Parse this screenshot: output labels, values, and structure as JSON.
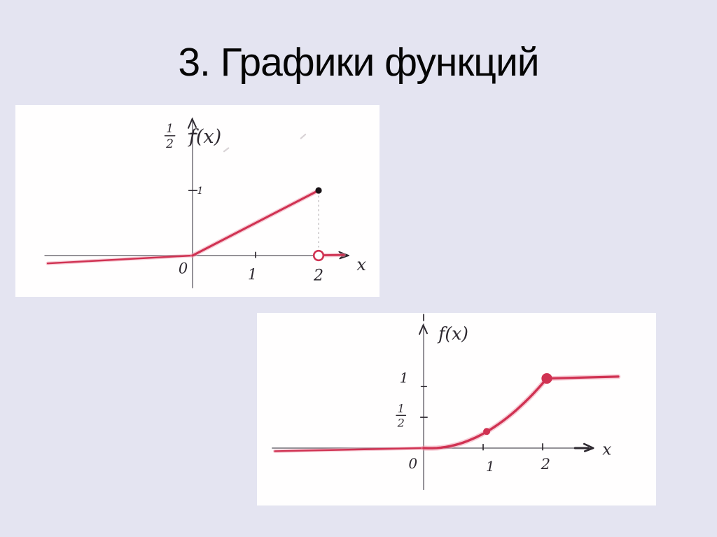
{
  "slide": {
    "title": "3. Графики функций"
  },
  "colors": {
    "background": "#e4e4f1",
    "panel": "#fffefe",
    "curve": "#d03252",
    "curve_halo": "#f09cb0",
    "axis": "#56515b",
    "ink": "#2e2930",
    "guide": "#b2acb0",
    "faint": "#d9d3d6",
    "dot_black": "#181115"
  },
  "chart_data": [
    {
      "type": "line",
      "name": "piecewise linear: f(x)=0 for x<0, f(x)=x/2 on (0,2), f(x)=0 for x>2",
      "xlabel": "x",
      "ylabel": "f(x)",
      "x_axis_range": [
        -2.35,
        2.48
      ],
      "y_axis_range": [
        -0.5,
        2.12
      ],
      "x_tick_labels": [
        "0",
        "1",
        "2"
      ],
      "y_tick_labels": [
        "1",
        "1/2"
      ],
      "segments": [
        {
          "points": [
            [
              -2.3,
              -0.12
            ],
            [
              0,
              0
            ]
          ]
        },
        {
          "points": [
            [
              0,
              0
            ],
            [
              2,
              1
            ]
          ]
        },
        {
          "points": [
            [
              2.08,
              0.005
            ],
            [
              2.4,
              0.01
            ]
          ]
        }
      ],
      "markers": [
        {
          "x": 2,
          "y": 1,
          "style": "black-dot"
        },
        {
          "x": 2,
          "y": 0,
          "style": "open-circle"
        }
      ],
      "guides": [
        {
          "from": [
            2,
            0.92
          ],
          "to": [
            2,
            0.09
          ]
        }
      ],
      "ticks": [
        {
          "from": [
            -0.06,
            1
          ],
          "to": [
            0.07,
            1
          ]
        },
        {
          "from": [
            -0.06,
            1.87
          ],
          "to": [
            0.07,
            1.87
          ]
        },
        {
          "from": [
            1,
            -0.03
          ],
          "to": [
            1,
            0.05
          ]
        }
      ],
      "faint_marks": [
        {
          "from": [
            0.5,
            1.6
          ],
          "to": [
            0.57,
            1.65
          ]
        },
        {
          "from": [
            1.72,
            1.8
          ],
          "to": [
            1.79,
            1.86
          ]
        }
      ],
      "labels": [
        {
          "text": "f(x)",
          "x": 0.2,
          "y": 1.83,
          "size": 27
        },
        {
          "frac": [
            "1",
            "2"
          ],
          "x": -0.36,
          "y": 1.84,
          "size": 17
        },
        {
          "text": "1",
          "x": 0.12,
          "y": 1.0,
          "size": 14
        },
        {
          "text": "0",
          "x": -0.15,
          "y": -0.2,
          "size": 21
        },
        {
          "text": "1",
          "x": 0.95,
          "y": -0.29,
          "size": 21
        },
        {
          "text": "2",
          "x": 2.0,
          "y": -0.3,
          "size": 22
        },
        {
          "text": "x",
          "x": 2.68,
          "y": -0.14,
          "size": 24
        }
      ]
    },
    {
      "type": "line",
      "name": "smooth curve: f(x)=0 for x<0, f(x)=x²/4 on [0,2], f(x)=1 for x>2",
      "xlabel": "x",
      "ylabel": "f(x)",
      "x_axis_range": [
        -2.55,
        2.85
      ],
      "y_axis_range": [
        -0.68,
        2.02
      ],
      "x_tick_labels": [
        "0",
        "1",
        "2"
      ],
      "y_tick_labels": [
        "1/2",
        "1"
      ],
      "segments": [
        {
          "points": [
            [
              -2.5,
              -0.05
            ],
            [
              0,
              0
            ]
          ]
        },
        {
          "points": [
            [
              0,
              0
            ],
            [
              1.05,
              0.26
            ],
            [
              2.07,
              1.13
            ]
          ],
          "curve": "smooth"
        },
        {
          "points": [
            [
              2.07,
              1.13
            ],
            [
              3.27,
              1.16
            ]
          ]
        }
      ],
      "markers": [
        {
          "x": 1.06,
          "y": 0.27,
          "style": "red-dot"
        },
        {
          "x": 2.07,
          "y": 1.13,
          "style": "red-dot-large"
        }
      ],
      "guides": [],
      "ticks": [
        {
          "from": [
            1,
            -0.03
          ],
          "to": [
            1,
            0.06
          ]
        },
        {
          "from": [
            2,
            -0.03
          ],
          "to": [
            2,
            0.07
          ]
        },
        {
          "from": [
            -0.04,
            1
          ],
          "to": [
            0.05,
            1
          ]
        },
        {
          "from": [
            -0.05,
            0.5
          ],
          "to": [
            0.06,
            0.5
          ]
        },
        {
          "from": [
            0,
            2.07
          ],
          "to": [
            0,
            2.17
          ]
        }
      ],
      "faint_marks": [],
      "labels": [
        {
          "text": "f(x)",
          "x": 0.5,
          "y": 1.86,
          "size": 25
        },
        {
          "text": "1",
          "x": -0.33,
          "y": 1.14,
          "size": 20
        },
        {
          "frac": [
            "1",
            "2"
          ],
          "x": -0.38,
          "y": 0.53,
          "size": 16
        },
        {
          "text": "0",
          "x": -0.18,
          "y": -0.25,
          "size": 20
        },
        {
          "text": "1",
          "x": 1.12,
          "y": -0.3,
          "size": 20
        },
        {
          "text": "2",
          "x": 2.05,
          "y": -0.26,
          "size": 21
        },
        {
          "text": "x",
          "x": 3.08,
          "y": -0.02,
          "size": 23
        }
      ]
    }
  ]
}
